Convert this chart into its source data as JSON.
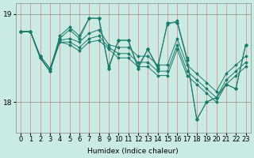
{
  "xlabel": "Humidex (Indice chaleur)",
  "x": [
    0,
    1,
    2,
    3,
    4,
    5,
    6,
    7,
    8,
    9,
    10,
    11,
    12,
    13,
    14,
    15,
    16,
    17,
    18,
    19,
    20,
    21,
    22,
    23
  ],
  "series": [
    [
      18.8,
      18.8,
      18.5,
      18.35,
      18.75,
      18.85,
      18.75,
      18.95,
      18.95,
      18.4,
      18.7,
      18.7,
      18.4,
      18.6,
      18.4,
      18.88,
      18.92,
      18.5,
      17.8,
      18.0,
      18.05,
      18.2,
      18.15,
      18.65
    ],
    [
      18.8,
      18.8,
      18.5,
      18.35,
      18.7,
      18.72,
      18.68,
      18.78,
      18.82,
      18.65,
      18.62,
      18.62,
      18.52,
      18.52,
      18.42,
      18.42,
      18.72,
      18.42,
      18.32,
      18.22,
      18.12,
      18.32,
      18.42,
      18.52
    ],
    [
      18.8,
      18.8,
      18.5,
      18.35,
      18.68,
      18.68,
      18.62,
      18.72,
      18.75,
      18.62,
      18.55,
      18.55,
      18.45,
      18.45,
      18.35,
      18.35,
      18.65,
      18.35,
      18.25,
      18.15,
      18.05,
      18.25,
      18.35,
      18.45
    ],
    [
      18.8,
      18.8,
      18.52,
      18.38,
      18.68,
      18.65,
      18.58,
      18.68,
      18.7,
      18.6,
      18.5,
      18.5,
      18.4,
      18.4,
      18.3,
      18.3,
      18.6,
      18.3,
      18.2,
      18.1,
      18.0,
      18.2,
      18.3,
      18.4
    ]
  ],
  "zigzag": [
    18.8,
    18.8,
    18.52,
    18.38,
    18.72,
    18.82,
    18.72,
    18.95,
    18.95,
    18.38,
    18.7,
    18.7,
    18.38,
    18.6,
    18.38,
    18.9,
    18.9,
    18.48,
    17.8,
    18.0,
    18.05,
    18.2,
    18.15,
    18.65
  ],
  "ylim": [
    17.65,
    19.12
  ],
  "yticks": [
    18,
    19
  ],
  "bg_color": "#caeae4",
  "vgrid_color": "#e08080",
  "hgrid_color": "#888888",
  "line_color": "#1a7a6a",
  "label_fontsize": 6.5
}
